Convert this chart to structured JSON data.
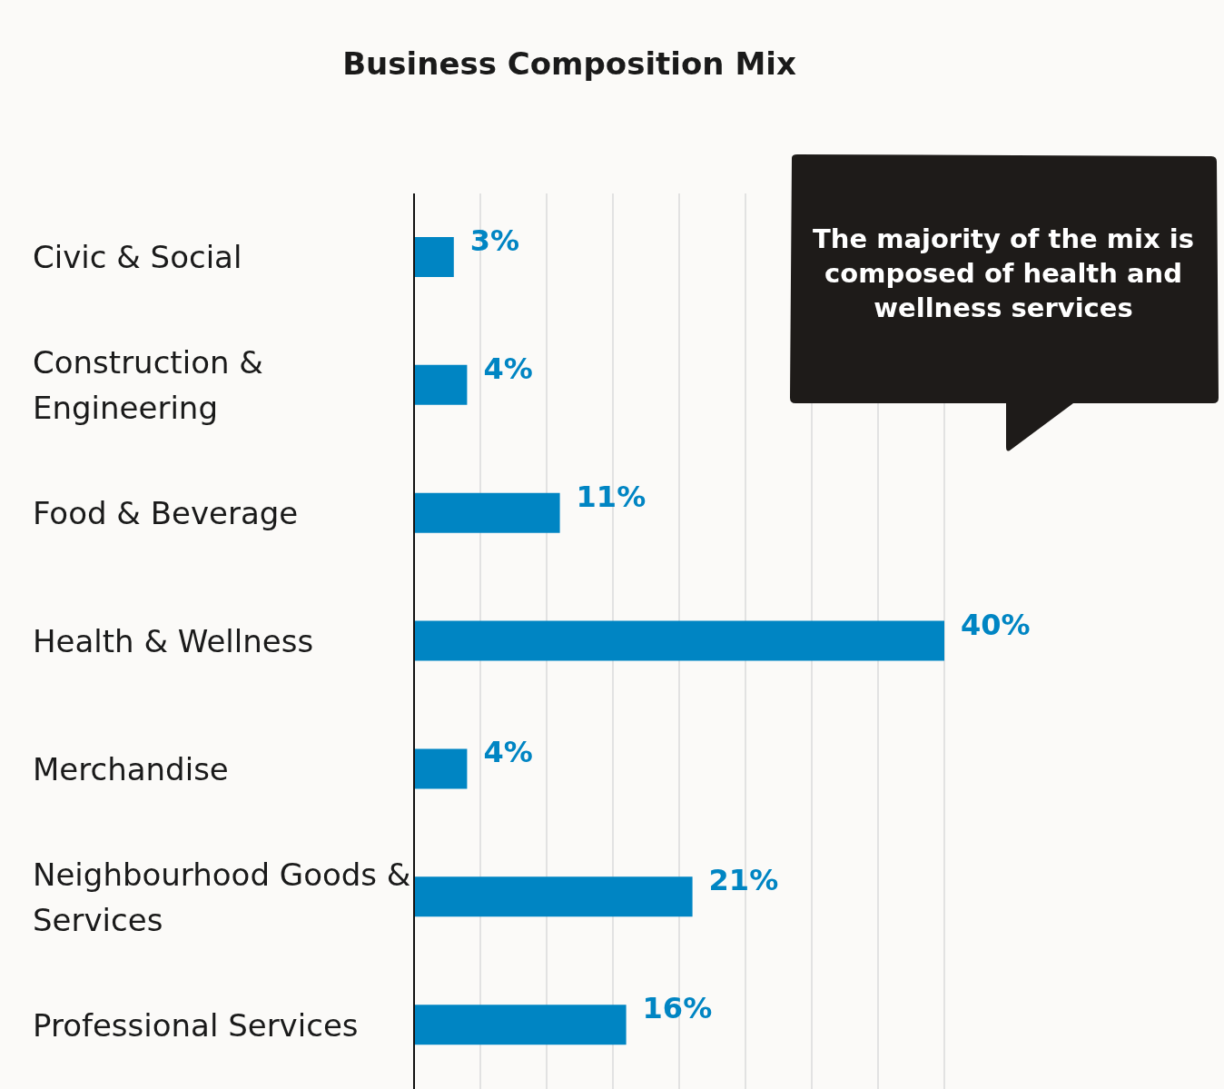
{
  "chart_data": {
    "type": "bar",
    "orientation": "horizontal",
    "title": "Business Composition Mix",
    "categories": [
      "Civic & Social",
      "Construction & Engineering",
      "Food & Beverage",
      "Health & Wellness",
      "Merchandise",
      "Neighbourhood Goods & Services",
      "Professional Services"
    ],
    "values": [
      3,
      4,
      11,
      40,
      4,
      21,
      16
    ],
    "color": "#0085c3",
    "value_labels": [
      "3%",
      "4%",
      "11%",
      "40%",
      "4%",
      "21%",
      "16%"
    ],
    "tick_labels": "y",
    "grid": "x",
    "annotations": [
      "The majority of the mix is composed of health and wellness services"
    ]
  }
}
